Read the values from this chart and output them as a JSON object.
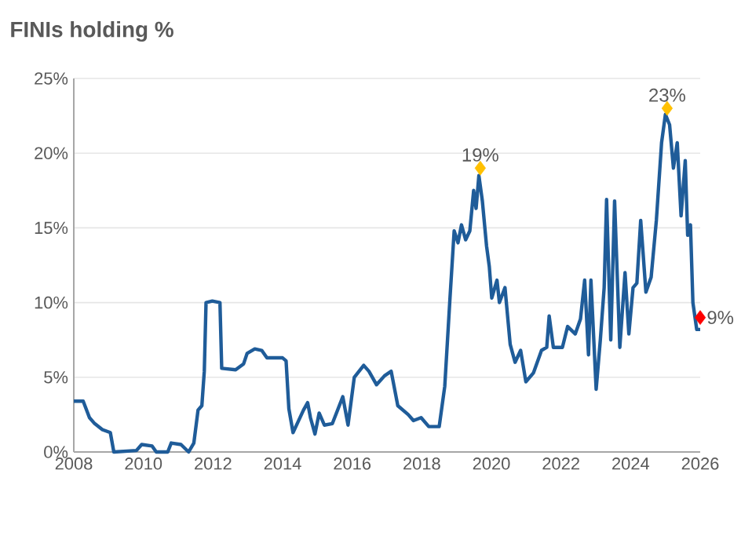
{
  "chart_data": {
    "type": "line",
    "title": "FINIs holding %",
    "xlim": [
      2008,
      2026
    ],
    "xticks": [
      2008,
      2010,
      2012,
      2014,
      2016,
      2018,
      2020,
      2022,
      2024,
      2026
    ],
    "ylim": [
      0,
      25
    ],
    "yticks": [
      {
        "value": 0,
        "label": "0%"
      },
      {
        "value": 5,
        "label": "5%"
      },
      {
        "value": 10,
        "label": "10%"
      },
      {
        "value": 15,
        "label": "15%"
      },
      {
        "value": 20,
        "label": "20%"
      },
      {
        "value": 25,
        "label": "25%"
      }
    ],
    "grid": "y",
    "series": [
      {
        "color": "#1f5c99",
        "marker": "none",
        "x": [
          2008.0,
          2008.27,
          2008.45,
          2008.6,
          2008.82,
          2009.05,
          2009.15,
          2009.8,
          2009.95,
          2010.25,
          2010.37,
          2010.7,
          2010.8,
          2011.08,
          2011.3,
          2011.45,
          2011.57,
          2011.68,
          2011.75,
          2011.8,
          2011.98,
          2012.2,
          2012.25,
          2012.65,
          2012.88,
          2012.98,
          2013.2,
          2013.4,
          2013.55,
          2014.0,
          2014.1,
          2014.18,
          2014.3,
          2014.42,
          2014.6,
          2014.72,
          2014.8,
          2014.93,
          2015.05,
          2015.2,
          2015.43,
          2015.73,
          2015.88,
          2016.06,
          2016.33,
          2016.48,
          2016.7,
          2016.93,
          2017.12,
          2017.31,
          2017.61,
          2017.76,
          2017.98,
          2018.2,
          2018.5,
          2018.66,
          2018.81,
          2018.93,
          2019.04,
          2019.14,
          2019.26,
          2019.38,
          2019.49,
          2019.56,
          2019.64,
          2019.74,
          2019.86,
          2019.94,
          2020.01,
          2020.16,
          2020.23,
          2020.39,
          2020.54,
          2020.68,
          2020.84,
          2020.99,
          2021.21,
          2021.44,
          2021.59,
          2021.66,
          2021.78,
          2022.04,
          2022.19,
          2022.41,
          2022.56,
          2022.68,
          2022.79,
          2022.86,
          2023.01,
          2023.13,
          2023.24,
          2023.31,
          2023.43,
          2023.54,
          2023.69,
          2023.84,
          2023.95,
          2024.07,
          2024.18,
          2024.29,
          2024.44,
          2024.59,
          2024.74,
          2024.89,
          2025.0,
          2025.12,
          2025.23,
          2025.34,
          2025.45,
          2025.57,
          2025.64,
          2025.72,
          2025.79,
          2025.9,
          2026.0
        ],
        "values": [
          3.4,
          3.4,
          2.3,
          1.9,
          1.5,
          1.3,
          0.0,
          0.1,
          0.5,
          0.4,
          0.0,
          0.0,
          0.6,
          0.5,
          0.0,
          0.6,
          2.8,
          3.1,
          5.4,
          10.0,
          10.1,
          10.0,
          5.6,
          5.5,
          5.9,
          6.6,
          6.9,
          6.8,
          6.3,
          6.3,
          6.1,
          2.9,
          1.3,
          1.9,
          2.8,
          3.3,
          2.3,
          1.2,
          2.6,
          1.8,
          1.9,
          3.7,
          1.8,
          5.0,
          5.8,
          5.4,
          4.5,
          5.1,
          5.4,
          3.1,
          2.5,
          2.1,
          2.3,
          1.7,
          1.7,
          4.4,
          10.3,
          14.8,
          14.0,
          15.2,
          14.2,
          14.8,
          17.5,
          16.3,
          18.5,
          16.8,
          13.8,
          12.4,
          10.3,
          11.5,
          10.0,
          11.0,
          7.2,
          6.0,
          6.8,
          4.7,
          5.3,
          6.8,
          7.0,
          9.1,
          7.0,
          7.0,
          8.4,
          7.9,
          8.9,
          11.5,
          6.5,
          11.5,
          4.2,
          7.5,
          11.0,
          16.9,
          7.5,
          16.8,
          7.0,
          12.0,
          7.9,
          11.0,
          11.3,
          15.5,
          10.7,
          11.7,
          15.5,
          20.7,
          22.6,
          21.9,
          19.0,
          20.7,
          15.8,
          19.5,
          14.5,
          15.2,
          10.0,
          8.2,
          8.2
        ]
      },
      {
        "type": "scatter",
        "color": "#ffc000",
        "marker": "diamond",
        "x": [
          2019.68,
          2025.05
        ],
        "values": [
          19,
          23
        ],
        "value_labels": [
          "19%",
          "23%"
        ]
      },
      {
        "type": "scatter",
        "color": "#ff0000",
        "marker": "diamond",
        "x": [
          2026
        ],
        "values": [
          9
        ],
        "value_labels": [
          "9%"
        ]
      }
    ]
  }
}
